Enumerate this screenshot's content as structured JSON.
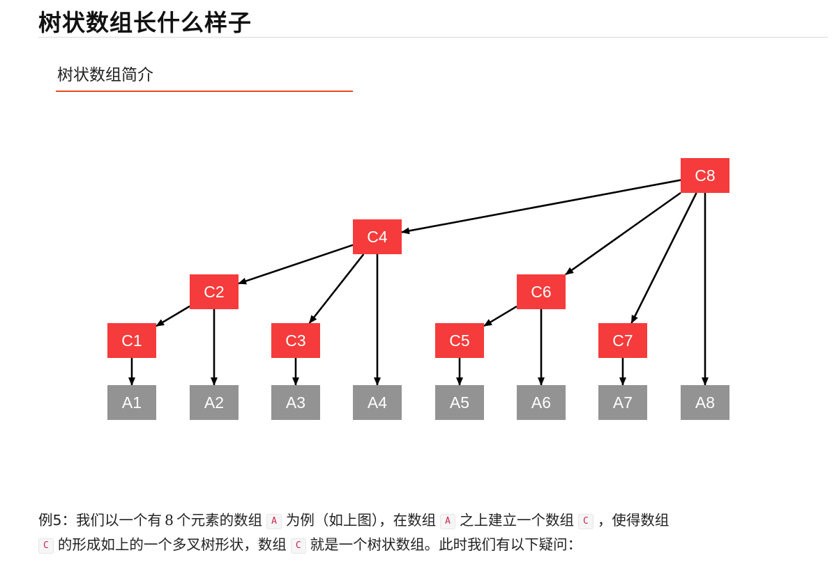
{
  "page": {
    "title": "树状数组长什么样子",
    "section_heading": "树状数组简介"
  },
  "diagram": {
    "colors": {
      "c_node": "#f53b3b",
      "a_node": "#939393",
      "text": "#ffffff",
      "arrow": "#000000"
    },
    "c_nodes": [
      {
        "id": "C1",
        "label": "C1"
      },
      {
        "id": "C2",
        "label": "C2"
      },
      {
        "id": "C3",
        "label": "C3"
      },
      {
        "id": "C4",
        "label": "C4"
      },
      {
        "id": "C5",
        "label": "C5"
      },
      {
        "id": "C6",
        "label": "C6"
      },
      {
        "id": "C7",
        "label": "C7"
      },
      {
        "id": "C8",
        "label": "C8"
      }
    ],
    "a_nodes": [
      {
        "id": "A1",
        "label": "A1"
      },
      {
        "id": "A2",
        "label": "A2"
      },
      {
        "id": "A3",
        "label": "A3"
      },
      {
        "id": "A4",
        "label": "A4"
      },
      {
        "id": "A5",
        "label": "A5"
      },
      {
        "id": "A6",
        "label": "A6"
      },
      {
        "id": "A7",
        "label": "A7"
      },
      {
        "id": "A8",
        "label": "A8"
      }
    ],
    "edges": [
      [
        "C8",
        "C4"
      ],
      [
        "C8",
        "C6"
      ],
      [
        "C8",
        "C7"
      ],
      [
        "C8",
        "A8"
      ],
      [
        "C4",
        "C2"
      ],
      [
        "C4",
        "C3"
      ],
      [
        "C4",
        "A4"
      ],
      [
        "C2",
        "C1"
      ],
      [
        "C2",
        "A2"
      ],
      [
        "C6",
        "C5"
      ],
      [
        "C6",
        "A6"
      ],
      [
        "C1",
        "A1"
      ],
      [
        "C3",
        "A3"
      ],
      [
        "C5",
        "A5"
      ],
      [
        "C7",
        "A7"
      ]
    ]
  },
  "paragraph": {
    "p1": "例5：我们以一个有",
    "num8": "8",
    "p2": "个元素的数组",
    "code_a1": "A",
    "p3": "为例（如上图），在数组",
    "code_a2": "A",
    "p4": "之上建立一个数组",
    "code_c1": "C",
    "p5": "，使得数组",
    "code_c2": "C",
    "p6": "的形成如上的一个多叉树形状，数组",
    "code_c3": "C",
    "p7": "就是一个树状数组。此时我们有以下疑问："
  }
}
